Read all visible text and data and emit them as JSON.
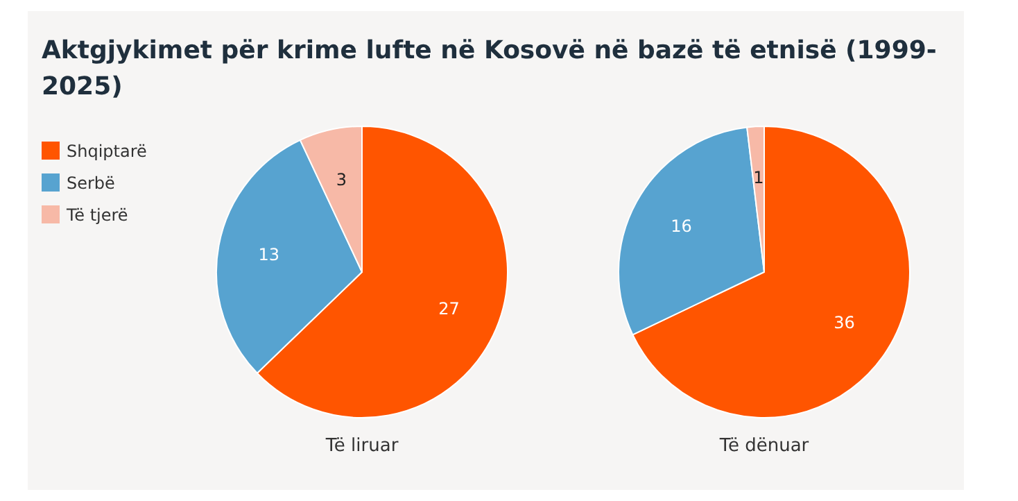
{
  "chart_data": {
    "type": "pie",
    "title": "Aktgjykimet për krime lufte në Kosovë në bazë të etnisë (1999-2025)",
    "categories": [
      "Shqiptarë",
      "Serbë",
      "Të tjerë"
    ],
    "colors": [
      "#ff5500",
      "#57a3d0",
      "#f7b9a7"
    ],
    "data_labels": true,
    "legend": "left",
    "series": [
      {
        "name": "Të liruar",
        "values": [
          27,
          13,
          3
        ]
      },
      {
        "name": "Të dënuar",
        "values": [
          36,
          16,
          1
        ]
      }
    ]
  }
}
